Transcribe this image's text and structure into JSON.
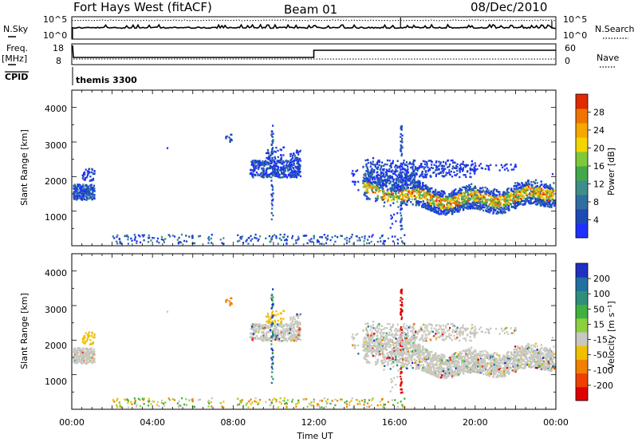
{
  "header": {
    "station": "Fort Hays West (fitACF)",
    "beam": "Beam 01",
    "date": "08/Dec/2010"
  },
  "params": {
    "nsky_label": "N.Sky",
    "nsky_ticks": [
      "10^5",
      "10^0"
    ],
    "nsearch_label": "N.Search",
    "nsearch_ticks": [
      "10^5",
      "10^0"
    ],
    "freq_label_1": "Freq.",
    "freq_label_2": "[MHz]",
    "freq_ticks": [
      "18",
      "8"
    ],
    "nave_label": "Nave",
    "nave_ticks": [
      "60",
      "0"
    ],
    "cpid_label": "CPID",
    "cpid_value": "themis 3300"
  },
  "colors": {
    "power": [
      "#1f30ff",
      "#1e4ab5",
      "#2f6fa0",
      "#3f8e8a",
      "#43a84c",
      "#7fc83a",
      "#f3d400",
      "#f5a800",
      "#f07500",
      "#e02a00"
    ],
    "velocity": [
      "#2030c0",
      "#2070a0",
      "#2f8f7a",
      "#40b040",
      "#8cd040",
      "#c8c8c0",
      "#f0c000",
      "#f08000",
      "#f04000",
      "#e00000"
    ]
  },
  "chart_data": [
    {
      "type": "heatmap",
      "name": "power",
      "ylabel": "Slant Range [km]",
      "ylim": [
        0,
        4500
      ],
      "yticks": [
        "4000",
        "3000",
        "2000",
        "1000"
      ],
      "xlim": [
        0,
        24
      ],
      "colorbar_label": "Power [dB]",
      "colorbar_ticks": [
        "28",
        "24",
        "20",
        "16",
        "12",
        "8",
        "4"
      ],
      "grid": false
    },
    {
      "type": "heatmap",
      "name": "velocity",
      "ylabel": "Slant Range [km]",
      "ylim": [
        0,
        4500
      ],
      "yticks": [
        "4000",
        "3000",
        "2000",
        "1000"
      ],
      "xlim": [
        0,
        24
      ],
      "xticks": [
        "00:00",
        "04:00",
        "08:00",
        "12:00",
        "16:00",
        "20:00",
        "00:00"
      ],
      "xlabel": "Time UT",
      "colorbar_label": "Velocity [m s⁻¹]",
      "colorbar_ticks": [
        "200",
        "100",
        "50",
        "15",
        "-15",
        "-50",
        "-100",
        "-200"
      ],
      "grid": false
    }
  ]
}
